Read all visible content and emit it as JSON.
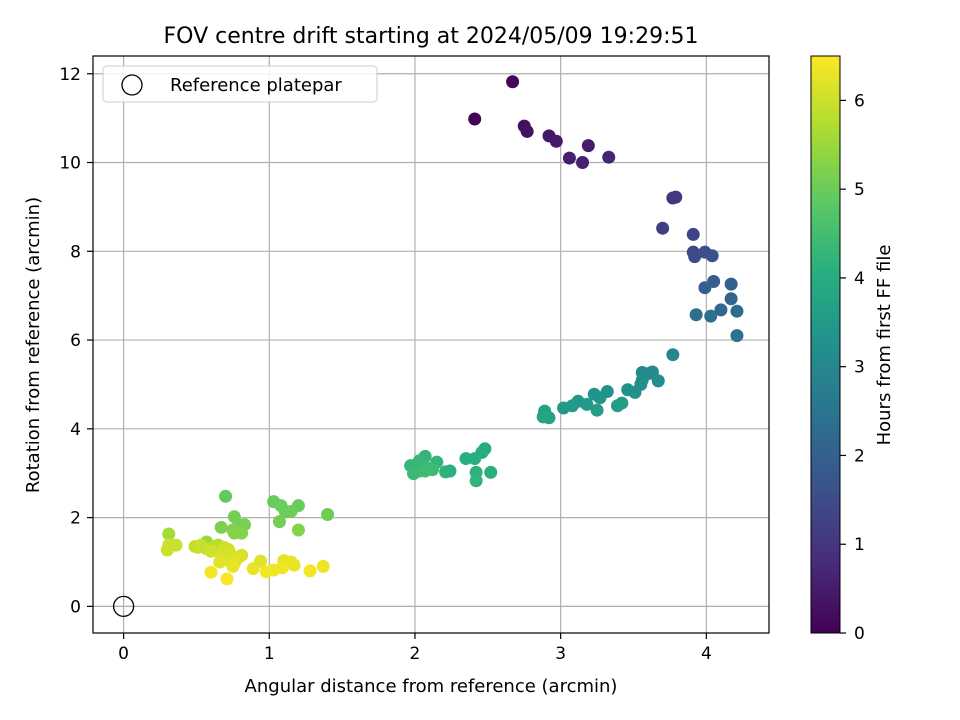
{
  "chart_data": {
    "type": "scatter",
    "title": "FOV centre drift starting at 2024/05/09 19:29:51",
    "xlabel": "Angular distance from reference (arcmin)",
    "ylabel": "Rotation from reference (arcmin)",
    "xlim": [
      -0.21,
      4.43
    ],
    "ylim": [
      -0.6,
      12.4
    ],
    "xticks": [
      "0",
      "1",
      "2",
      "3",
      "4"
    ],
    "yticks": [
      "0",
      "2",
      "4",
      "6",
      "8",
      "10",
      "12"
    ],
    "grid": true,
    "legend": {
      "placement": "top-left",
      "entries": [
        "Reference platepar"
      ]
    },
    "reference_point": {
      "x": 0,
      "y": 0
    },
    "colorbar": {
      "label": "Hours from first FF file",
      "range": [
        0,
        6.5
      ],
      "ticks": [
        "0",
        "1",
        "2",
        "3",
        "4",
        "5",
        "6"
      ]
    },
    "points": [
      {
        "x": 2.41,
        "y": 10.98,
        "c": 0.05
      },
      {
        "x": 2.67,
        "y": 11.82,
        "c": 0.1
      },
      {
        "x": 2.75,
        "y": 10.82,
        "c": 0.25
      },
      {
        "x": 2.77,
        "y": 10.7,
        "c": 0.3
      },
      {
        "x": 2.92,
        "y": 10.6,
        "c": 0.4
      },
      {
        "x": 2.97,
        "y": 10.48,
        "c": 0.45
      },
      {
        "x": 3.06,
        "y": 10.1,
        "c": 0.55
      },
      {
        "x": 3.15,
        "y": 10.0,
        "c": 0.6
      },
      {
        "x": 3.19,
        "y": 10.38,
        "c": 0.5
      },
      {
        "x": 3.33,
        "y": 10.12,
        "c": 0.65
      },
      {
        "x": 3.77,
        "y": 9.2,
        "c": 0.95
      },
      {
        "x": 3.79,
        "y": 9.22,
        "c": 1.0
      },
      {
        "x": 3.7,
        "y": 8.52,
        "c": 1.2
      },
      {
        "x": 3.91,
        "y": 8.38,
        "c": 1.3
      },
      {
        "x": 3.91,
        "y": 7.98,
        "c": 1.45
      },
      {
        "x": 3.92,
        "y": 7.88,
        "c": 1.5
      },
      {
        "x": 3.99,
        "y": 7.98,
        "c": 1.55
      },
      {
        "x": 4.04,
        "y": 7.9,
        "c": 1.6
      },
      {
        "x": 4.05,
        "y": 7.32,
        "c": 1.9
      },
      {
        "x": 3.99,
        "y": 7.18,
        "c": 1.95
      },
      {
        "x": 4.17,
        "y": 7.26,
        "c": 2.0
      },
      {
        "x": 4.17,
        "y": 6.93,
        "c": 2.1
      },
      {
        "x": 4.1,
        "y": 6.68,
        "c": 2.2
      },
      {
        "x": 4.21,
        "y": 6.65,
        "c": 2.25
      },
      {
        "x": 3.93,
        "y": 6.57,
        "c": 2.3
      },
      {
        "x": 4.03,
        "y": 6.54,
        "c": 2.35
      },
      {
        "x": 4.21,
        "y": 6.1,
        "c": 2.45
      },
      {
        "x": 3.77,
        "y": 5.67,
        "c": 3.0
      },
      {
        "x": 3.56,
        "y": 5.27,
        "c": 3.05
      },
      {
        "x": 3.61,
        "y": 5.25,
        "c": 3.1
      },
      {
        "x": 3.63,
        "y": 5.28,
        "c": 3.1
      },
      {
        "x": 3.56,
        "y": 5.1,
        "c": 3.15
      },
      {
        "x": 3.67,
        "y": 5.08,
        "c": 3.2
      },
      {
        "x": 3.55,
        "y": 5.0,
        "c": 3.2
      },
      {
        "x": 3.46,
        "y": 4.88,
        "c": 3.25
      },
      {
        "x": 3.51,
        "y": 4.82,
        "c": 3.25
      },
      {
        "x": 3.32,
        "y": 4.84,
        "c": 3.3
      },
      {
        "x": 3.23,
        "y": 4.78,
        "c": 3.35
      },
      {
        "x": 3.27,
        "y": 4.7,
        "c": 3.35
      },
      {
        "x": 3.12,
        "y": 4.62,
        "c": 3.4
      },
      {
        "x": 3.18,
        "y": 4.55,
        "c": 3.45
      },
      {
        "x": 3.08,
        "y": 4.52,
        "c": 3.5
      },
      {
        "x": 3.02,
        "y": 4.47,
        "c": 3.5
      },
      {
        "x": 3.25,
        "y": 4.42,
        "c": 3.55
      },
      {
        "x": 3.39,
        "y": 4.52,
        "c": 3.55
      },
      {
        "x": 3.42,
        "y": 4.58,
        "c": 3.6
      },
      {
        "x": 2.89,
        "y": 4.4,
        "c": 3.7
      },
      {
        "x": 2.92,
        "y": 4.25,
        "c": 3.75
      },
      {
        "x": 2.88,
        "y": 4.27,
        "c": 3.75
      },
      {
        "x": 2.48,
        "y": 3.55,
        "c": 4.0
      },
      {
        "x": 2.46,
        "y": 3.47,
        "c": 4.0
      },
      {
        "x": 2.41,
        "y": 3.33,
        "c": 4.05
      },
      {
        "x": 2.35,
        "y": 3.33,
        "c": 4.05
      },
      {
        "x": 2.24,
        "y": 3.05,
        "c": 4.1
      },
      {
        "x": 2.21,
        "y": 3.03,
        "c": 4.15
      },
      {
        "x": 2.52,
        "y": 3.02,
        "c": 4.1
      },
      {
        "x": 2.42,
        "y": 3.02,
        "c": 4.15
      },
      {
        "x": 2.42,
        "y": 2.83,
        "c": 4.2
      },
      {
        "x": 2.15,
        "y": 3.25,
        "c": 4.25
      },
      {
        "x": 2.07,
        "y": 3.38,
        "c": 4.25
      },
      {
        "x": 2.03,
        "y": 3.28,
        "c": 4.3
      },
      {
        "x": 1.97,
        "y": 3.17,
        "c": 4.3
      },
      {
        "x": 2.03,
        "y": 3.05,
        "c": 4.35
      },
      {
        "x": 2.08,
        "y": 3.12,
        "c": 4.35
      },
      {
        "x": 2.12,
        "y": 3.08,
        "c": 4.4
      },
      {
        "x": 1.99,
        "y": 2.99,
        "c": 4.4
      },
      {
        "x": 2.07,
        "y": 3.05,
        "c": 4.45
      },
      {
        "x": 0.7,
        "y": 2.48,
        "c": 4.9
      },
      {
        "x": 1.03,
        "y": 2.36,
        "c": 4.95
      },
      {
        "x": 1.08,
        "y": 2.27,
        "c": 5.0
      },
      {
        "x": 1.2,
        "y": 2.27,
        "c": 5.0
      },
      {
        "x": 1.11,
        "y": 2.14,
        "c": 5.0
      },
      {
        "x": 1.4,
        "y": 2.07,
        "c": 5.05
      },
      {
        "x": 1.15,
        "y": 2.14,
        "c": 5.05
      },
      {
        "x": 0.76,
        "y": 2.02,
        "c": 5.1
      },
      {
        "x": 1.07,
        "y": 1.91,
        "c": 5.1
      },
      {
        "x": 0.83,
        "y": 1.84,
        "c": 5.15
      },
      {
        "x": 0.79,
        "y": 1.84,
        "c": 5.15
      },
      {
        "x": 0.67,
        "y": 1.78,
        "c": 5.2
      },
      {
        "x": 0.75,
        "y": 1.72,
        "c": 5.2
      },
      {
        "x": 1.2,
        "y": 1.72,
        "c": 5.25
      },
      {
        "x": 0.81,
        "y": 1.65,
        "c": 5.25
      },
      {
        "x": 0.76,
        "y": 1.65,
        "c": 5.3
      },
      {
        "x": 0.57,
        "y": 1.45,
        "c": 5.5
      },
      {
        "x": 0.31,
        "y": 1.63,
        "c": 5.6
      },
      {
        "x": 0.65,
        "y": 1.38,
        "c": 5.75
      },
      {
        "x": 0.62,
        "y": 1.35,
        "c": 5.8
      },
      {
        "x": 0.57,
        "y": 1.3,
        "c": 5.85
      },
      {
        "x": 0.51,
        "y": 1.33,
        "c": 5.9
      },
      {
        "x": 0.49,
        "y": 1.35,
        "c": 5.9
      },
      {
        "x": 0.53,
        "y": 1.38,
        "c": 5.95
      },
      {
        "x": 0.36,
        "y": 1.38,
        "c": 5.95
      },
      {
        "x": 0.31,
        "y": 1.38,
        "c": 6.0
      },
      {
        "x": 0.3,
        "y": 1.27,
        "c": 6.0
      },
      {
        "x": 0.69,
        "y": 1.33,
        "c": 6.0
      },
      {
        "x": 0.72,
        "y": 1.28,
        "c": 6.05
      },
      {
        "x": 0.6,
        "y": 1.24,
        "c": 6.05
      },
      {
        "x": 0.73,
        "y": 1.2,
        "c": 6.1
      },
      {
        "x": 0.67,
        "y": 1.15,
        "c": 6.1
      },
      {
        "x": 0.81,
        "y": 1.15,
        "c": 6.1
      },
      {
        "x": 0.79,
        "y": 1.1,
        "c": 6.15
      },
      {
        "x": 0.7,
        "y": 1.05,
        "c": 6.15
      },
      {
        "x": 0.66,
        "y": 1.0,
        "c": 6.2
      },
      {
        "x": 0.76,
        "y": 0.97,
        "c": 6.2
      },
      {
        "x": 0.94,
        "y": 1.02,
        "c": 6.2
      },
      {
        "x": 1.1,
        "y": 1.03,
        "c": 6.25
      },
      {
        "x": 1.15,
        "y": 1.0,
        "c": 6.25
      },
      {
        "x": 0.75,
        "y": 0.9,
        "c": 6.3
      },
      {
        "x": 0.89,
        "y": 0.85,
        "c": 6.3
      },
      {
        "x": 1.17,
        "y": 0.93,
        "c": 6.3
      },
      {
        "x": 1.37,
        "y": 0.9,
        "c": 6.35
      },
      {
        "x": 1.09,
        "y": 0.87,
        "c": 6.35
      },
      {
        "x": 1.03,
        "y": 0.82,
        "c": 6.35
      },
      {
        "x": 0.98,
        "y": 0.78,
        "c": 6.4
      },
      {
        "x": 1.28,
        "y": 0.8,
        "c": 6.4
      },
      {
        "x": 0.6,
        "y": 0.77,
        "c": 6.4
      },
      {
        "x": 0.71,
        "y": 0.62,
        "c": 6.45
      }
    ]
  }
}
